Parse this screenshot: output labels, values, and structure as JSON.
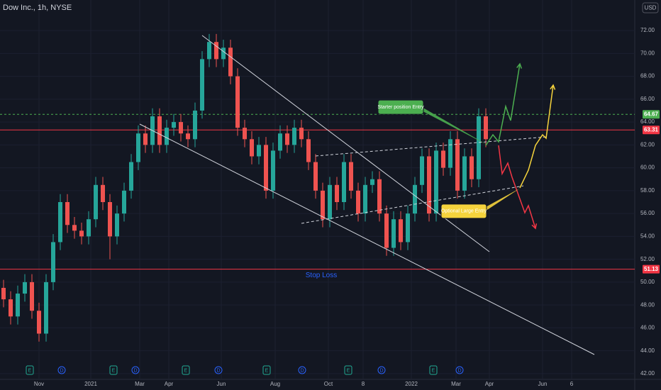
{
  "chart_data": {
    "type": "candlestick",
    "title": "Dow Inc., 1h, NYSE",
    "currency": "USD",
    "up_color": "#26a69a",
    "down_color": "#ef5350",
    "x": [
      0.5,
      1.5,
      2.5,
      3.5,
      4.5,
      5.5,
      6.5,
      7.5,
      8.5,
      9.5,
      10.5,
      11.5,
      12.5,
      13.5,
      14.5,
      15.5,
      16.5,
      17.5,
      18.5,
      19.5,
      20.5,
      21.5,
      22.5,
      23.5,
      24.5,
      25.5,
      26.5,
      27.5,
      28.5,
      29.5,
      30.5,
      31.5,
      32.5,
      33.5,
      34.5,
      35.5,
      36.5,
      37.5,
      38.5,
      39.5,
      40.5,
      41.5,
      42.5,
      43.5,
      44.5,
      45.5,
      46.5,
      47.5,
      48.5,
      49.5,
      50.5,
      51.5,
      52.5,
      53.5,
      54.5,
      55.5,
      56.5,
      57.5,
      58.5,
      59.5,
      60.5,
      61.5,
      62.5,
      63.5,
      64.5,
      65.5,
      66.5,
      67.5,
      68.5
    ],
    "open": [
      49.5,
      48.5,
      47,
      49,
      50,
      47.5,
      45.5,
      50,
      53.5,
      57,
      55,
      54.5,
      54,
      55.5,
      58.5,
      57,
      54,
      56,
      58,
      60.5,
      63,
      62,
      64.5,
      62,
      63.5,
      64,
      63,
      62.5,
      65,
      69.5,
      71,
      69.5,
      70.5,
      68,
      63.5,
      62.5,
      61,
      62,
      58,
      61.5,
      63,
      62,
      63.5,
      62.5,
      60.5,
      58,
      55.5,
      58.5,
      57,
      60.5,
      58,
      56,
      58.5,
      59,
      56,
      53,
      55.5,
      53.5,
      56,
      58.5,
      61,
      56,
      61.5,
      60,
      62.5,
      58,
      61,
      59,
      64.5
    ],
    "high": [
      50.2,
      49.2,
      49.7,
      50.7,
      50.7,
      48.2,
      50.7,
      54.2,
      57.7,
      57.7,
      55.7,
      55.2,
      56.2,
      59.2,
      59.2,
      57.7,
      56.7,
      58.7,
      61.2,
      63.7,
      63.7,
      65.2,
      65.2,
      64.2,
      64.7,
      64.7,
      63.7,
      65.7,
      70.2,
      71.7,
      71.7,
      71.2,
      71.2,
      68.7,
      64.2,
      63.2,
      62.7,
      62.7,
      62.2,
      63.7,
      63.7,
      64.2,
      64.2,
      63.2,
      61.2,
      58.7,
      59.2,
      59.2,
      61.2,
      61.2,
      58.7,
      59.2,
      59.7,
      59.7,
      56.7,
      56.2,
      56.2,
      56.7,
      59.2,
      61.7,
      61.7,
      62.2,
      62.2,
      63.2,
      63.2,
      61.7,
      61.7,
      65.2,
      65.2
    ],
    "low": [
      47.8,
      46.3,
      46.3,
      48.3,
      46.8,
      44.8,
      44.8,
      49.3,
      52.8,
      54.3,
      53.8,
      53.3,
      53.3,
      54.8,
      56.3,
      52,
      53.3,
      55.3,
      57.3,
      59.8,
      61.3,
      61.3,
      61.3,
      61.3,
      62.8,
      62.3,
      61.8,
      61.8,
      64.3,
      68.8,
      68.8,
      68.8,
      67.3,
      62.8,
      61.8,
      60.3,
      60.3,
      57.3,
      57.3,
      60.8,
      61.3,
      61.3,
      61.8,
      59.8,
      57.3,
      54.8,
      54.8,
      56.3,
      56.3,
      57.3,
      55.3,
      55.3,
      57.8,
      55.3,
      52.3,
      52.3,
      52.8,
      52.8,
      55.3,
      57.8,
      55.3,
      55.3,
      59.3,
      59.3,
      57.3,
      57.3,
      58.3,
      58.3,
      61.8
    ],
    "close": [
      48.5,
      47,
      49,
      50,
      47.5,
      45.5,
      50,
      53.5,
      57,
      55,
      54.5,
      54,
      55.5,
      58.5,
      57,
      54,
      56,
      58,
      60.5,
      63,
      62,
      64.5,
      62,
      63.5,
      64,
      63,
      62.5,
      65,
      69.5,
      71,
      69.5,
      70.5,
      68,
      63.5,
      62.5,
      61,
      62,
      58,
      61.5,
      63,
      62,
      63.5,
      62.5,
      60.5,
      58,
      55.5,
      58.5,
      57,
      60.5,
      58,
      56,
      58.5,
      59,
      56,
      53,
      55.5,
      53.5,
      56,
      58.5,
      61,
      56,
      61.5,
      60,
      62.5,
      58,
      61,
      59,
      64.5,
      62.5
    ],
    "xlim": [
      0,
      89.5
    ],
    "xticks": [
      {
        "value": 5.5,
        "label": "Nov"
      },
      {
        "value": 12.8,
        "label": "2021"
      },
      {
        "value": 19.7,
        "label": "Mar"
      },
      {
        "value": 23.8,
        "label": "Apr"
      },
      {
        "value": 31.2,
        "label": "Jun"
      },
      {
        "value": 38.8,
        "label": "Aug"
      },
      {
        "value": 46.3,
        "label": "Oct"
      },
      {
        "value": 51.2,
        "label": "8"
      },
      {
        "value": 58,
        "label": "2022"
      },
      {
        "value": 64.3,
        "label": "Mar"
      },
      {
        "value": 69,
        "label": "Apr"
      },
      {
        "value": 76.5,
        "label": "Jun"
      },
      {
        "value": 80.6,
        "label": "6"
      }
    ],
    "ylim": [
      41.5,
      74.67
    ],
    "yticks": [
      {
        "value": 42,
        "label": "42.00"
      },
      {
        "value": 44,
        "label": "44.00"
      },
      {
        "value": 46,
        "label": "46.00"
      },
      {
        "value": 48,
        "label": "48.00"
      },
      {
        "value": 50,
        "label": "50.00"
      },
      {
        "value": 52,
        "label": "52.00"
      },
      {
        "value": 54,
        "label": "54.00"
      },
      {
        "value": 56,
        "label": "56.00"
      },
      {
        "value": 58,
        "label": "58.00"
      },
      {
        "value": 60,
        "label": "60.00"
      },
      {
        "value": 62,
        "label": "62.00"
      },
      {
        "value": 64,
        "label": "64.00"
      },
      {
        "value": 66,
        "label": "66.00"
      },
      {
        "value": 68,
        "label": "68.00"
      },
      {
        "value": 70,
        "label": "70.00"
      },
      {
        "value": 72,
        "label": "72.00"
      }
    ],
    "grid": true,
    "horizontal_lines": [
      {
        "value": 64.67,
        "color": "#4caf50",
        "dashed": true
      },
      {
        "value": 63.31,
        "color": "#f23645",
        "dashed": false
      },
      {
        "value": 51.13,
        "color": "#f23645",
        "dashed": false
      }
    ],
    "drawings": [
      {
        "color": "#d1d4dc",
        "dashed": false,
        "points": [
          [
            28.5,
            71.57
          ],
          [
            69,
            52.66
          ]
        ]
      },
      {
        "color": "#d1d4dc",
        "dashed": false,
        "points": [
          [
            19.7,
            63.82
          ],
          [
            83.8,
            43.67
          ]
        ]
      },
      {
        "color": "#d1d4dc",
        "dashed": true,
        "points": [
          [
            42.5,
            55.14
          ],
          [
            73.8,
            58.42
          ]
        ]
      },
      {
        "color": "#d1d4dc",
        "dashed": true,
        "points": [
          [
            44.5,
            61.03
          ],
          [
            77,
            62.7
          ]
        ]
      },
      {
        "color": "#4caf50",
        "dashed": false,
        "points": [
          [
            68.5,
            61.96
          ],
          [
            69.5,
            62.89
          ],
          [
            70.3,
            62.27
          ],
          [
            71.3,
            65.37
          ],
          [
            72,
            64.13
          ],
          [
            73.3,
            69.09
          ]
        ]
      },
      {
        "color": "#f23645",
        "dashed": false,
        "points": [
          [
            70.3,
            61.96
          ],
          [
            70.8,
            59.48
          ],
          [
            71.6,
            60.41
          ],
          [
            72.2,
            59.17
          ],
          [
            73,
            57.8
          ],
          [
            74,
            56.07
          ],
          [
            74.5,
            56.69
          ],
          [
            75.5,
            54.7
          ]
        ]
      },
      {
        "color": "#f5d33c",
        "dashed": false,
        "points": [
          [
            73.3,
            58.24
          ],
          [
            74.5,
            59.79
          ],
          [
            75.5,
            61.96
          ],
          [
            76.5,
            62.89
          ],
          [
            77,
            62.58
          ],
          [
            78,
            67.23
          ]
        ]
      }
    ],
    "annotations": [
      {
        "text": "Stop Loss",
        "x": 45.3,
        "y": 50.6
      },
      {
        "text": "Starter position Entry",
        "x": 56.5,
        "y": 65.3,
        "color": "#4caf50",
        "target_x": 69,
        "target_y": 61.9
      },
      {
        "text": "Optional Large Entry",
        "x": 65.4,
        "y": 56.2,
        "color": "#f5d33c",
        "target_x": 73.3,
        "target_y": 58.2
      }
    ],
    "events": [
      {
        "label": "E",
        "x": 4.2,
        "color": "#22ab94"
      },
      {
        "label": "D",
        "x": 8.7,
        "color": "#2962ff"
      },
      {
        "label": "E",
        "x": 16,
        "color": "#22ab94"
      },
      {
        "label": "D",
        "x": 19.1,
        "color": "#2962ff"
      },
      {
        "label": "E",
        "x": 26.2,
        "color": "#22ab94"
      },
      {
        "label": "D",
        "x": 30.8,
        "color": "#2962ff"
      },
      {
        "label": "E",
        "x": 37.6,
        "color": "#22ab94"
      },
      {
        "label": "D",
        "x": 42.6,
        "color": "#2962ff"
      },
      {
        "label": "E",
        "x": 49.1,
        "color": "#22ab94"
      },
      {
        "label": "D",
        "x": 53.8,
        "color": "#2962ff"
      },
      {
        "label": "E",
        "x": 61.1,
        "color": "#22ab94"
      },
      {
        "label": "D",
        "x": 64.8,
        "color": "#2962ff"
      }
    ]
  }
}
